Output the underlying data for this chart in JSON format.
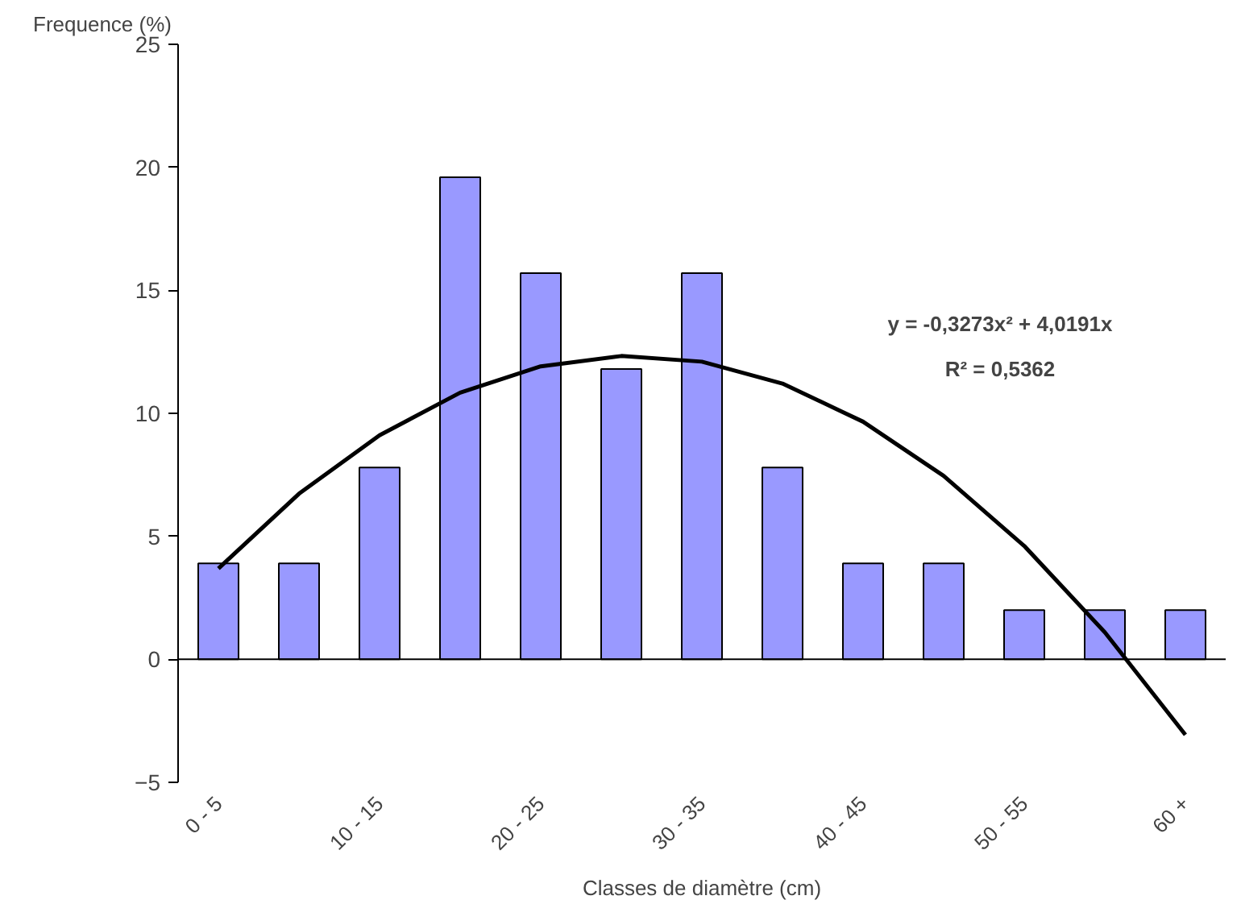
{
  "chart_data": {
    "type": "bar",
    "xlabel": "Classes de diamètre (cm)",
    "ylabel": "Frequence (%)",
    "categories": [
      "0 - 5",
      null,
      "10 - 15",
      null,
      "20 - 25",
      null,
      "30 - 35",
      null,
      "40 - 45",
      null,
      "50 - 55",
      null,
      "60 +"
    ],
    "ylim": [
      -5,
      25
    ],
    "yticks": [
      -5,
      0,
      5,
      10,
      15,
      20,
      25
    ],
    "series": [
      {
        "color": "#9999ff",
        "values": [
          3.9,
          3.9,
          7.8,
          19.6,
          15.7,
          11.8,
          15.7,
          7.8,
          3.9,
          3.9,
          2,
          2,
          2
        ]
      },
      {
        "type": "line",
        "color": "#000000",
        "values": [
          3.69,
          6.73,
          9.11,
          10.84,
          11.91,
          12.33,
          12.1,
          11.21,
          9.66,
          7.46,
          4.61,
          1.1,
          -3.07
        ]
      }
    ],
    "annotations": [
      "y = -0,3273x² + 4,0191x",
      "R² = 0,5362"
    ]
  }
}
